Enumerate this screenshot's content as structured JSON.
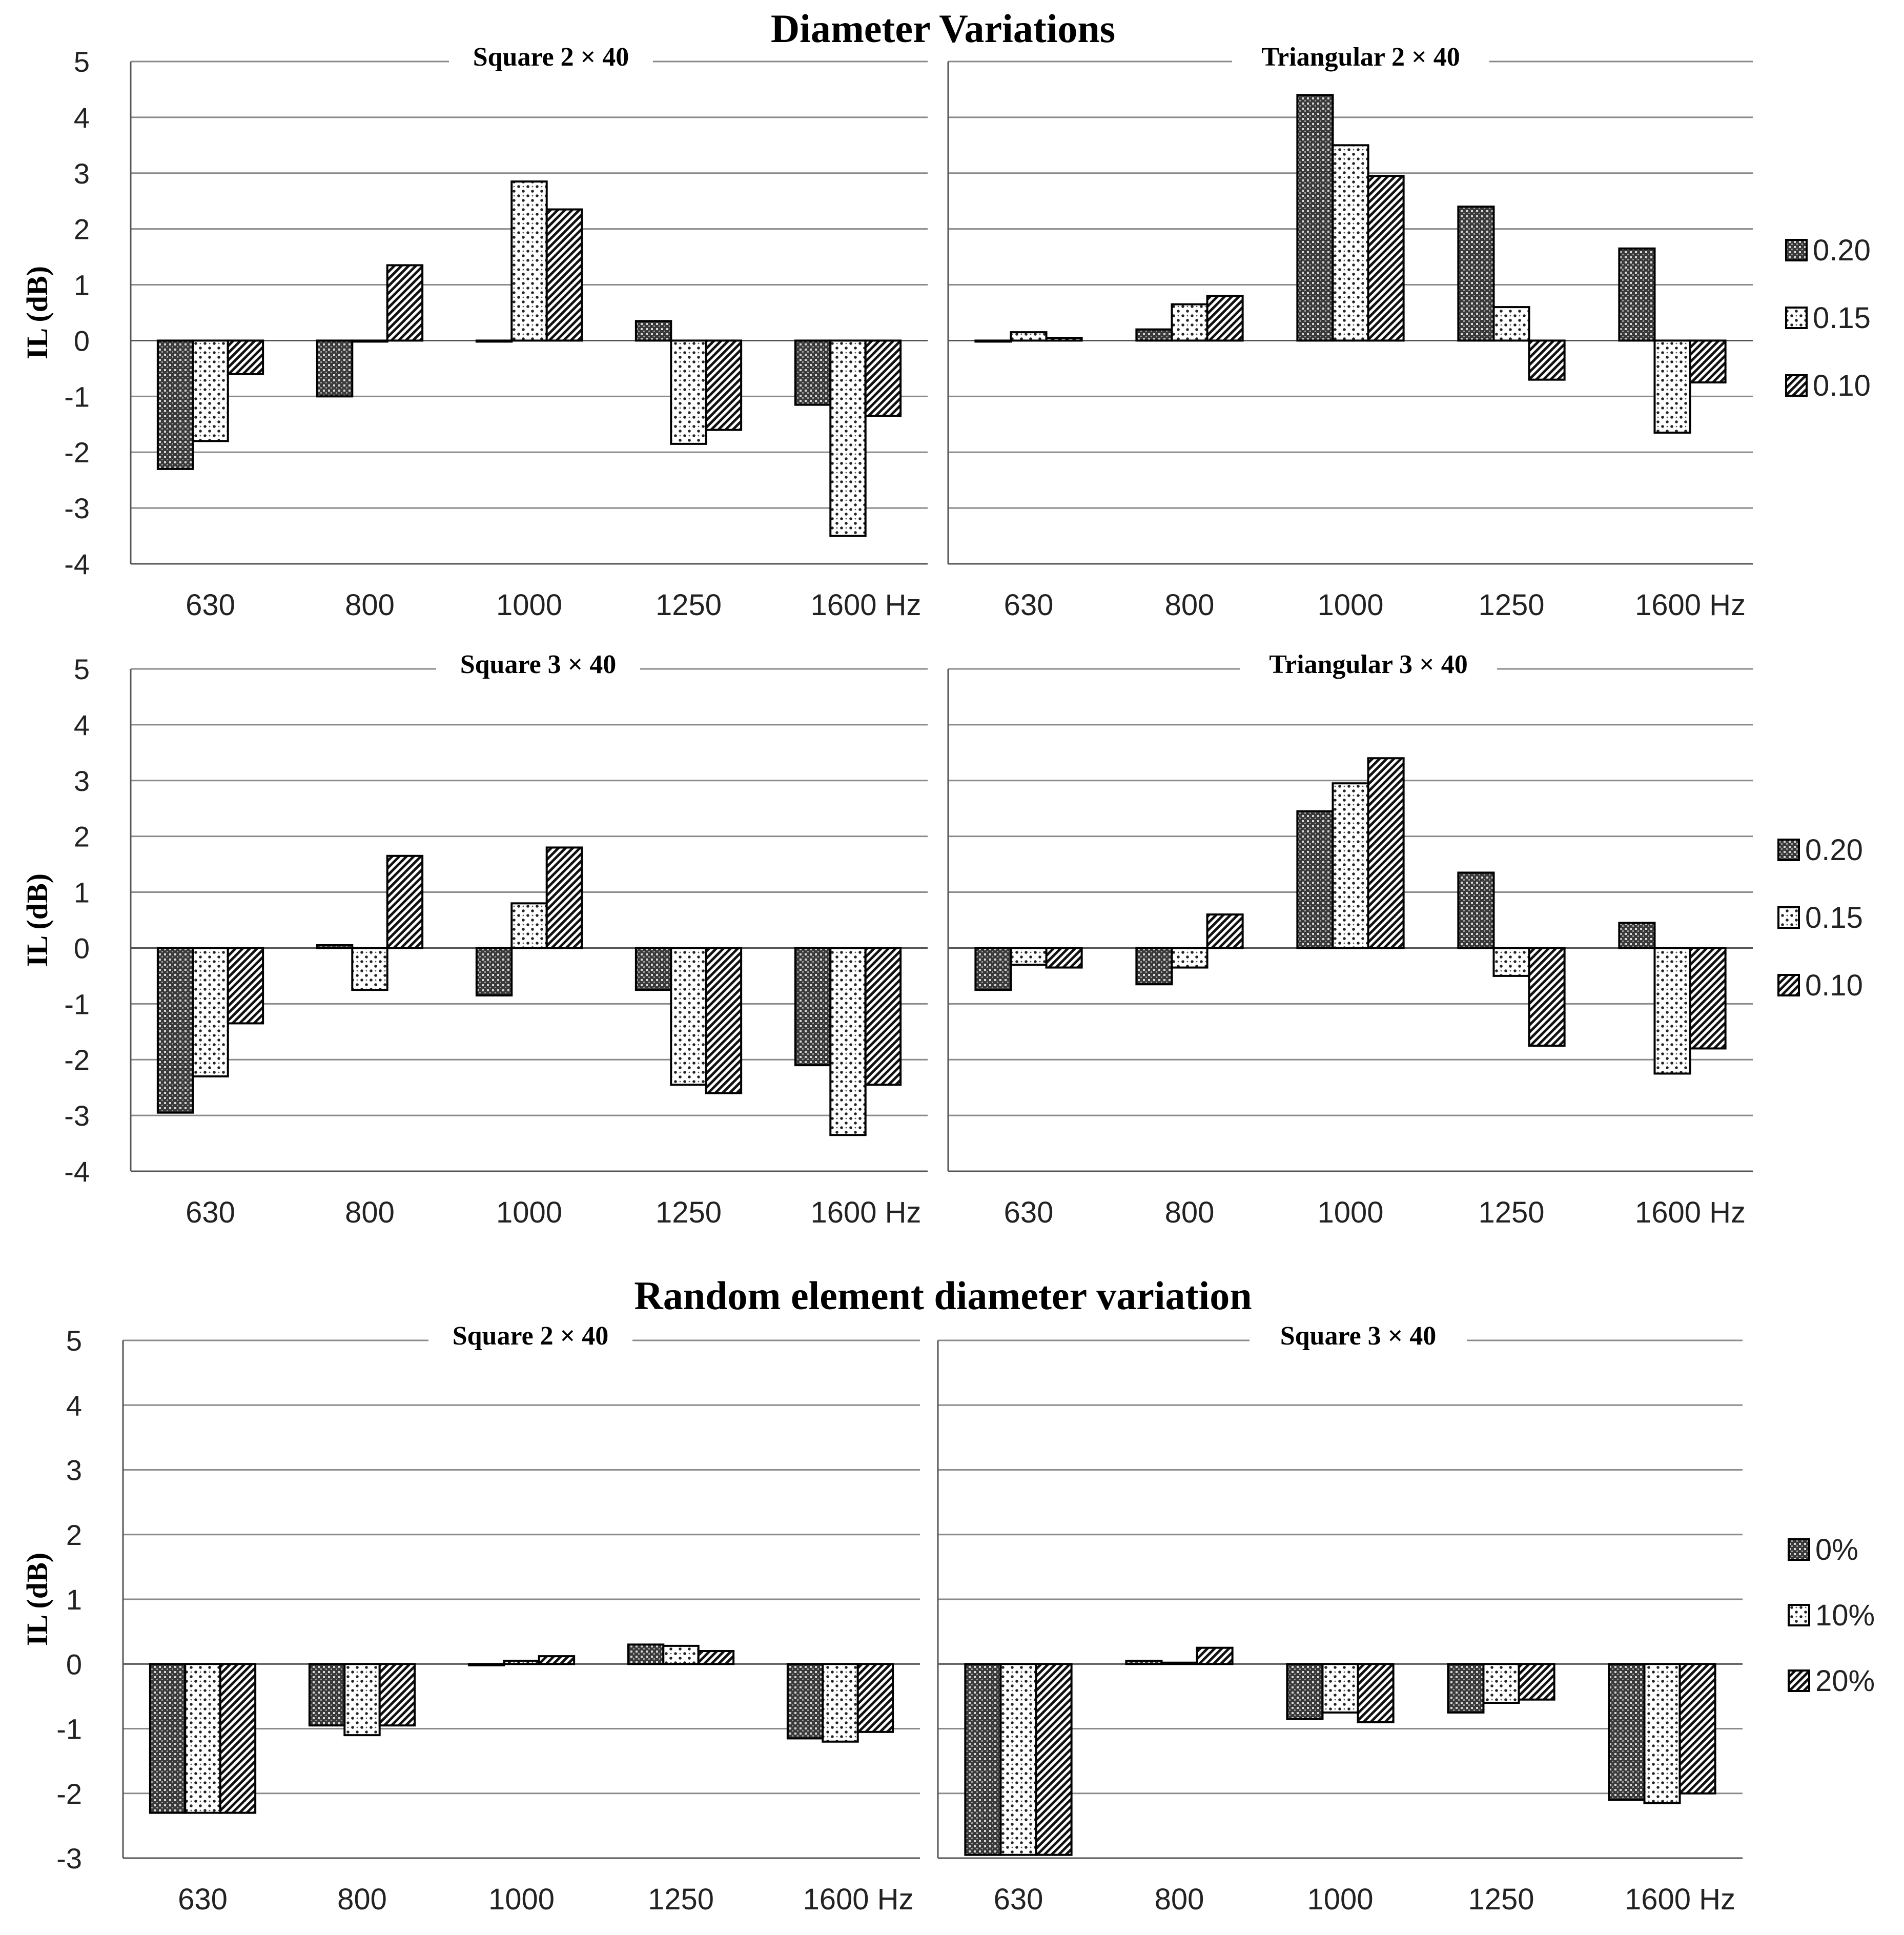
{
  "chart_data": {
    "sections": [
      {
        "title": "Diameter Variations"
      },
      {
        "title": "Random element diameter variation"
      }
    ],
    "legends": [
      {
        "series": [
          "0.20",
          "0.15",
          "0.10"
        ]
      },
      {
        "series": [
          "0.20",
          "0.15",
          "0.10"
        ]
      },
      {
        "series": [
          "0%",
          "10%",
          "20%"
        ]
      }
    ],
    "panels": [
      {
        "type": "bar",
        "title": "Square 2 × 40",
        "ylabel": "IL (dB)",
        "ylim": [
          -4,
          5
        ],
        "yticks": [
          "5",
          "4",
          "3",
          "2",
          "1",
          "0",
          "-1",
          "-2",
          "-3",
          "-4"
        ],
        "categories": [
          "630",
          "800",
          "1000",
          "1250",
          "1600 Hz"
        ],
        "series": [
          {
            "name": "0.20",
            "values": [
              -2.3,
              -1.0,
              0.0,
              0.35,
              -1.15
            ]
          },
          {
            "name": "0.15",
            "values": [
              -1.8,
              0.0,
              2.85,
              -1.85,
              -3.5
            ]
          },
          {
            "name": "0.10",
            "values": [
              -0.6,
              1.35,
              2.35,
              -1.6,
              -1.35
            ]
          }
        ]
      },
      {
        "type": "bar",
        "title": "Triangular 2 × 40",
        "ylim": [
          -4,
          5
        ],
        "categories": [
          "630",
          "800",
          "1000",
          "1250",
          "1600 Hz"
        ],
        "series": [
          {
            "name": "0.20",
            "values": [
              0.0,
              0.2,
              4.4,
              2.4,
              1.65
            ]
          },
          {
            "name": "0.15",
            "values": [
              0.15,
              0.65,
              3.5,
              0.6,
              -1.65
            ]
          },
          {
            "name": "0.10",
            "values": [
              0.05,
              0.8,
              2.95,
              -0.7,
              -0.75
            ]
          }
        ]
      },
      {
        "type": "bar",
        "title": "Square 3 × 40",
        "ylabel": "IL (dB)",
        "ylim": [
          -4,
          5
        ],
        "yticks": [
          "5",
          "4",
          "3",
          "2",
          "1",
          "0",
          "-1",
          "-2",
          "-3",
          "-4"
        ],
        "categories": [
          "630",
          "800",
          "1000",
          "1250",
          "1600 Hz"
        ],
        "series": [
          {
            "name": "0.20",
            "values": [
              -2.95,
              0.05,
              -0.85,
              -0.75,
              -2.1
            ]
          },
          {
            "name": "0.15",
            "values": [
              -2.3,
              -0.75,
              0.8,
              -2.45,
              -3.35
            ]
          },
          {
            "name": "0.10",
            "values": [
              -1.35,
              1.65,
              1.8,
              -2.6,
              -2.45
            ]
          }
        ]
      },
      {
        "type": "bar",
        "title": "Triangular 3 × 40",
        "ylim": [
          -4,
          5
        ],
        "categories": [
          "630",
          "800",
          "1000",
          "1250",
          "1600 Hz"
        ],
        "series": [
          {
            "name": "0.20",
            "values": [
              -0.75,
              -0.65,
              2.45,
              1.35,
              0.45
            ]
          },
          {
            "name": "0.15",
            "values": [
              -0.3,
              -0.35,
              2.95,
              -0.5,
              -2.25
            ]
          },
          {
            "name": "0.10",
            "values": [
              -0.35,
              0.6,
              3.4,
              -1.75,
              -1.8
            ]
          }
        ]
      },
      {
        "type": "bar",
        "title": "Square 2 × 40",
        "ylabel": "IL (dB)",
        "ylim": [
          -3,
          5
        ],
        "yticks": [
          "5",
          "4",
          "3",
          "2",
          "1",
          "0",
          "-1",
          "-2",
          "-3"
        ],
        "categories": [
          "630",
          "800",
          "1000",
          "1250",
          "1600 Hz"
        ],
        "series": [
          {
            "name": "0%",
            "values": [
              -2.3,
              -0.95,
              -0.02,
              0.3,
              -1.15
            ]
          },
          {
            "name": "10%",
            "values": [
              -2.3,
              -1.1,
              0.05,
              0.28,
              -1.2
            ]
          },
          {
            "name": "20%",
            "values": [
              -2.3,
              -0.95,
              0.12,
              0.2,
              -1.05
            ]
          }
        ]
      },
      {
        "type": "bar",
        "title": "Square  3 × 40",
        "ylim": [
          -3,
          5
        ],
        "categories": [
          "630",
          "800",
          "1000",
          "1250",
          "1600 Hz"
        ],
        "series": [
          {
            "name": "0%",
            "values": [
              -2.95,
              0.05,
              -0.85,
              -0.75,
              -2.1
            ]
          },
          {
            "name": "10%",
            "values": [
              -2.95,
              0.02,
              -0.75,
              -0.6,
              -2.15
            ]
          },
          {
            "name": "20%",
            "values": [
              -2.95,
              0.25,
              -0.9,
              -0.55,
              -2.0
            ]
          }
        ]
      }
    ]
  }
}
